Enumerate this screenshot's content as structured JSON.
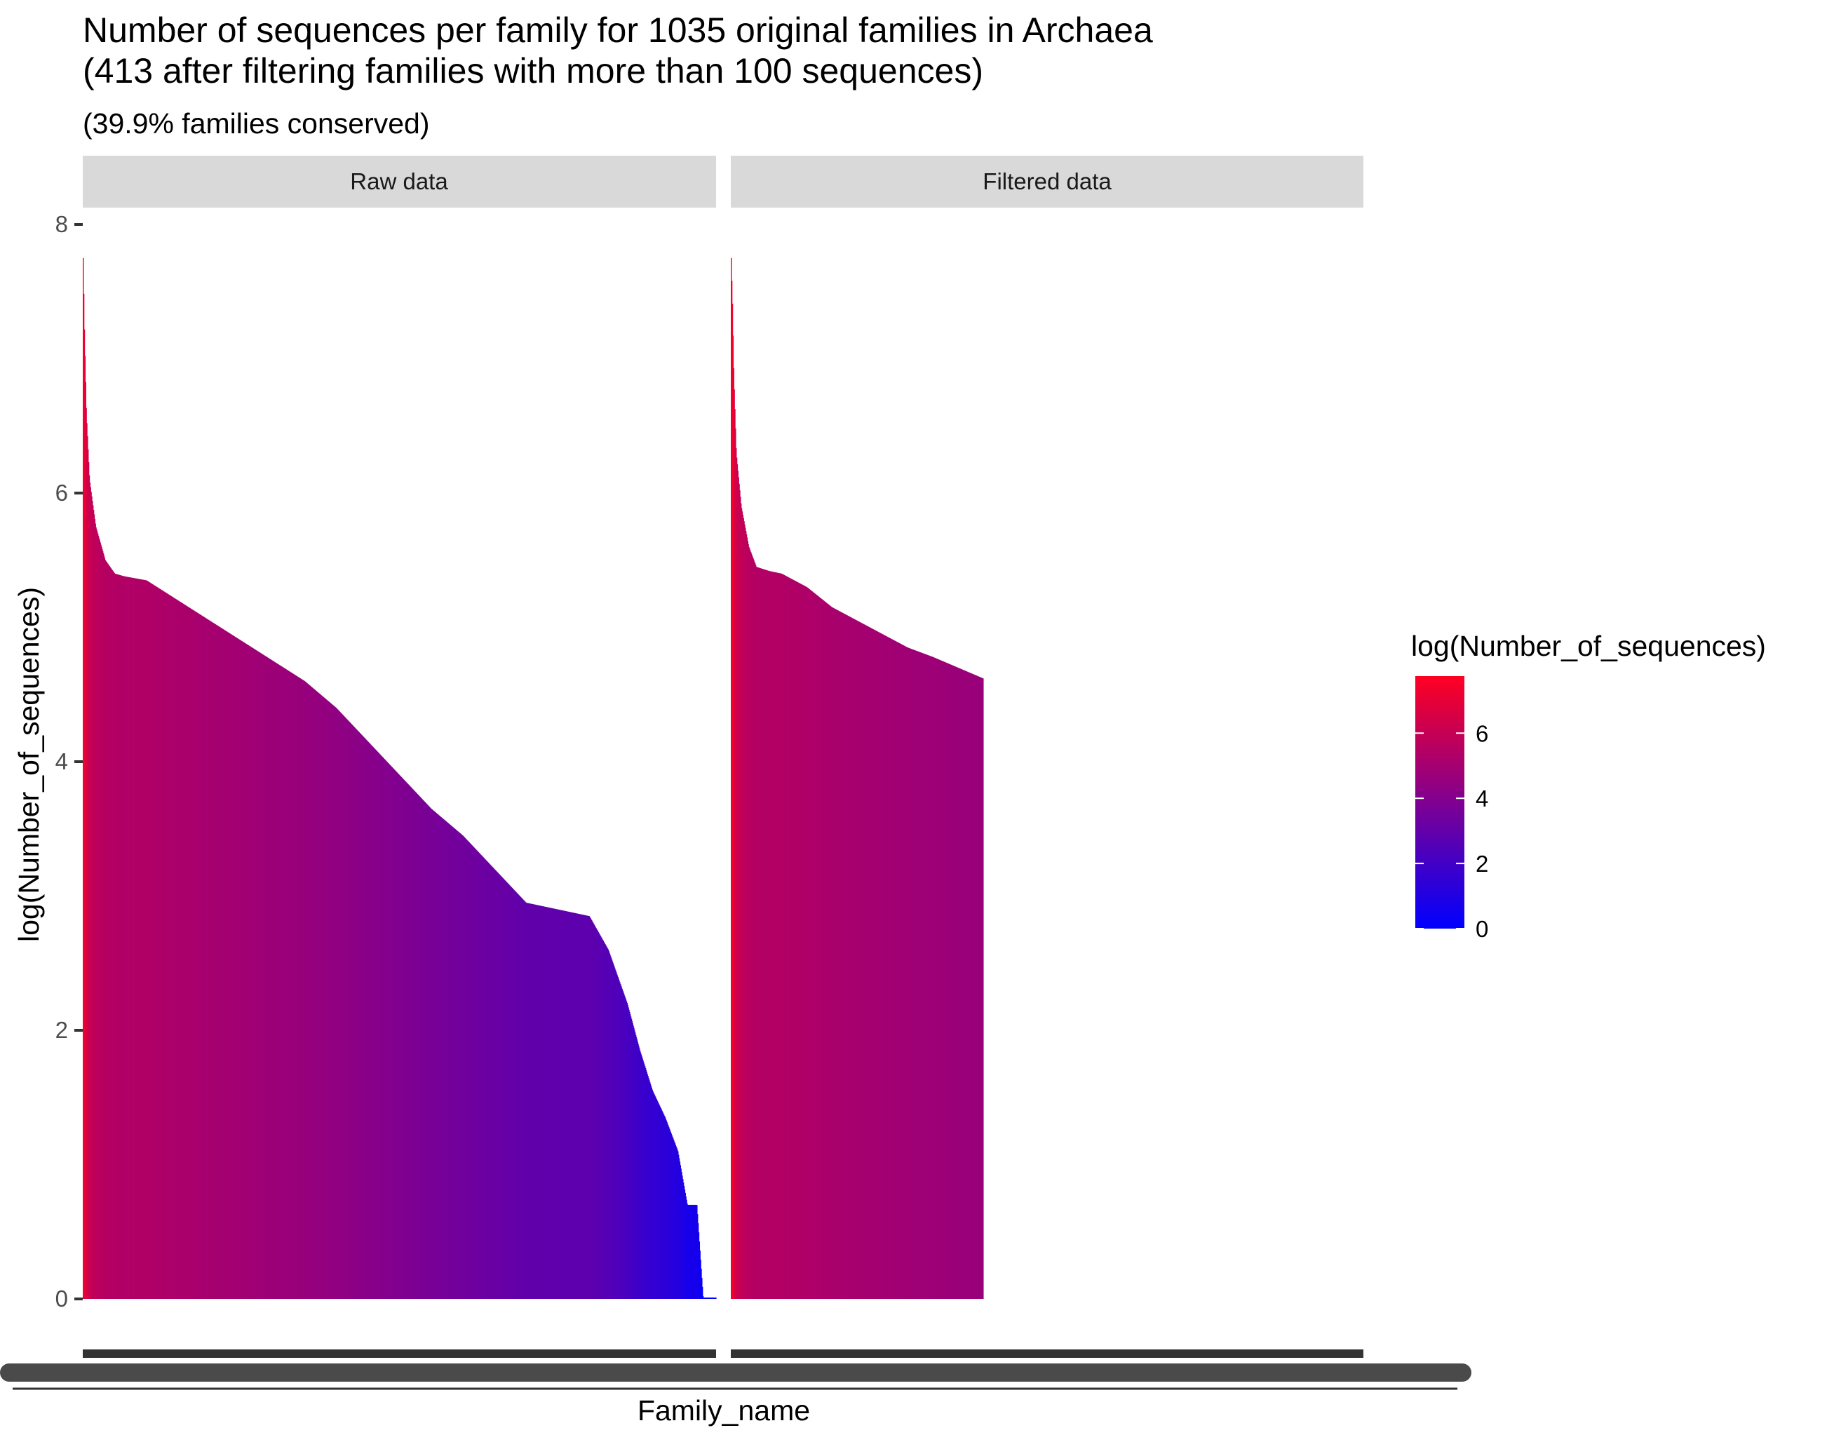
{
  "title_line1": "Number of sequences per family for 1035 original families in Archaea",
  "title_line2": "(413 after filtering families with more than 100 sequences)",
  "subtitle": "(39.9% families conserved)",
  "colors": {
    "low": "#0000ff",
    "high": "#ff0022",
    "strip_bg": "#d9d9d9",
    "axis_line": "#333333"
  },
  "chart_data": {
    "type": "bar",
    "facets": [
      "Raw data",
      "Filtered data"
    ],
    "xlabel": "Family_name",
    "ylabel": "log(Number_of_sequences)",
    "ylim": [
      0,
      8
    ],
    "y_ticks": [
      0,
      2,
      4,
      6,
      8
    ],
    "legend": {
      "title": "log(Number_of_sequences)",
      "ticks": [
        0,
        2,
        4,
        6
      ],
      "range": [
        0,
        7.75
      ],
      "placement": "right"
    },
    "series": [
      {
        "facet": "Raw data",
        "n_families": 1035,
        "profile_rank_fraction": [
          0,
          0.002,
          0.005,
          0.01,
          0.02,
          0.035,
          0.05,
          0.065,
          0.1,
          0.15,
          0.2,
          0.25,
          0.3,
          0.35,
          0.4,
          0.45,
          0.5,
          0.55,
          0.6,
          0.65,
          0.7,
          0.75,
          0.8,
          0.83,
          0.86,
          0.88,
          0.9,
          0.92,
          0.94,
          0.955,
          0.97,
          0.98,
          1.0
        ],
        "profile_values": [
          7.75,
          7.2,
          6.6,
          6.1,
          5.75,
          5.5,
          5.4,
          5.38,
          5.35,
          5.2,
          5.05,
          4.9,
          4.75,
          4.6,
          4.4,
          4.15,
          3.9,
          3.65,
          3.45,
          3.2,
          2.95,
          2.9,
          2.85,
          2.6,
          2.2,
          1.85,
          1.55,
          1.35,
          1.1,
          0.7,
          0.7,
          0.0,
          0.0
        ]
      },
      {
        "facet": "Filtered data",
        "n_families": 413,
        "profile_rank_fraction": [
          0,
          0.005,
          0.01,
          0.02,
          0.04,
          0.07,
          0.1,
          0.15,
          0.2,
          0.3,
          0.4,
          0.5,
          0.6,
          0.7,
          0.8,
          0.9,
          1.0
        ],
        "profile_values": [
          7.75,
          7.4,
          6.9,
          6.3,
          5.9,
          5.6,
          5.45,
          5.42,
          5.4,
          5.3,
          5.15,
          5.05,
          4.95,
          4.85,
          4.78,
          4.7,
          4.62
        ]
      }
    ]
  }
}
